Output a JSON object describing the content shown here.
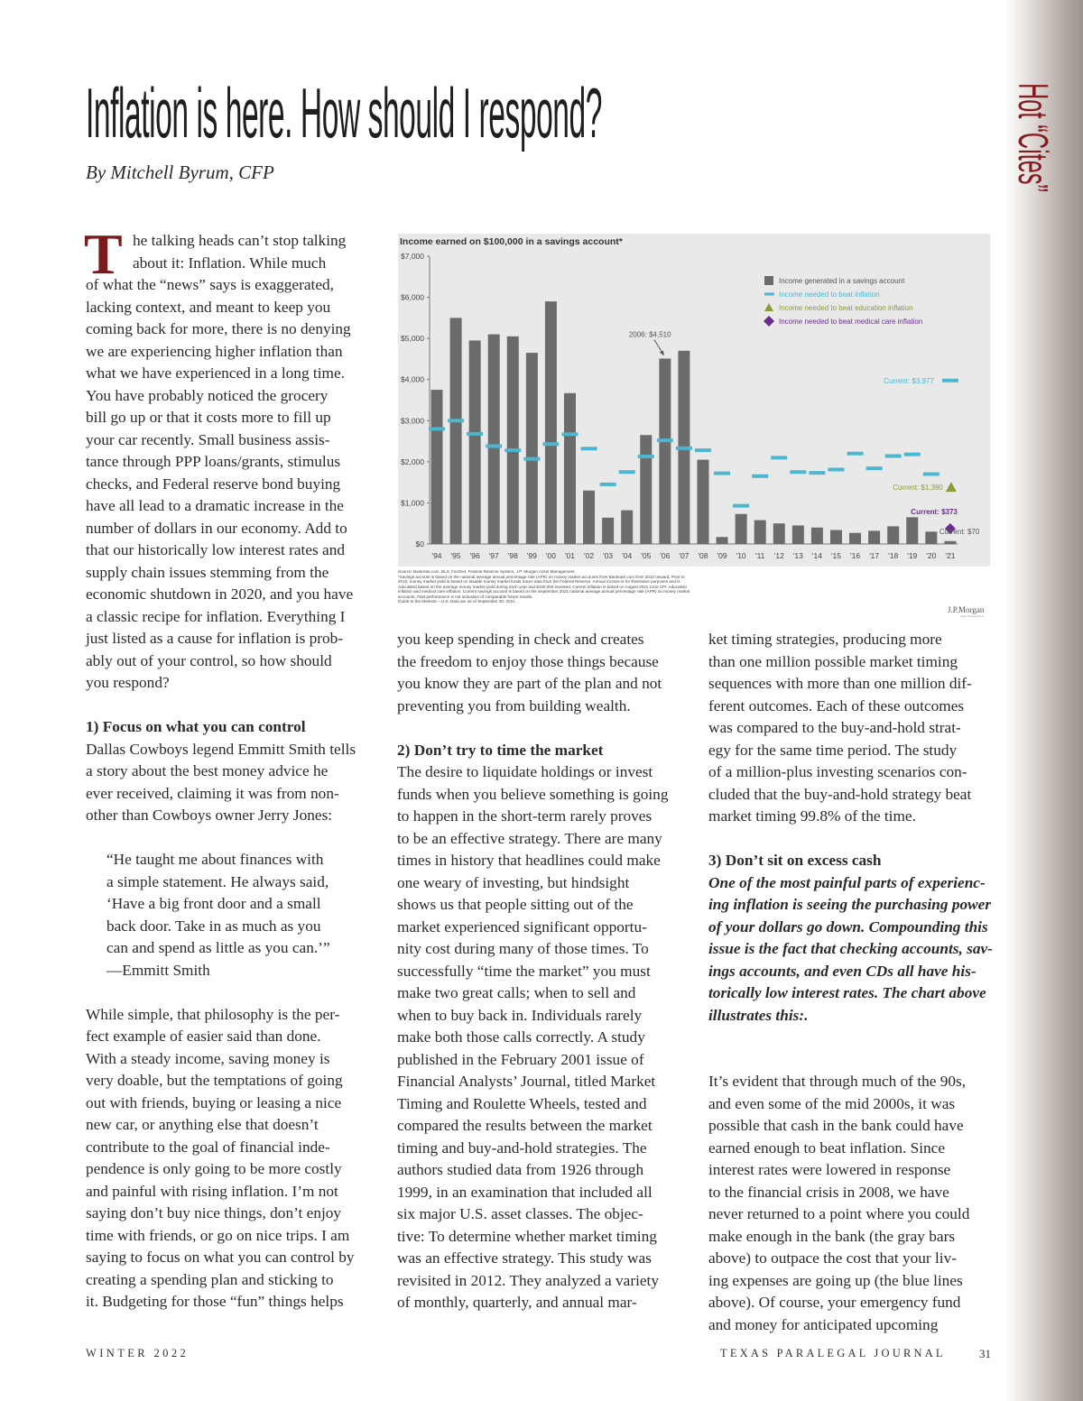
{
  "side_banner": "Hot “Cites”",
  "title": "Inflation is here. How should I respond?",
  "byline": "By Mitchell Byrum, CFP",
  "drop_cap": "T",
  "columns": [
    {
      "lines": [
        {
          "s": "d",
          "t": "he talking heads can’t stop talking"
        },
        {
          "s": "d",
          "t": "about it: Inflation. While much"
        },
        {
          "s": "",
          "t": "of what the “news” says is exaggerated,"
        },
        {
          "s": "",
          "t": "lacking context, and meant to keep you"
        },
        {
          "s": "",
          "t": "coming back for more, there is no denying"
        },
        {
          "s": "",
          "t": "we are experiencing higher inflation than"
        },
        {
          "s": "",
          "t": "what we have experienced in a long time."
        },
        {
          "s": "",
          "t": "You have probably noticed the grocery"
        },
        {
          "s": "",
          "t": "bill go up or that it costs more to fill up"
        },
        {
          "s": "",
          "t": "your car recently. Small business assis-"
        },
        {
          "s": "",
          "t": "tance through PPP loans/grants, stimulus"
        },
        {
          "s": "",
          "t": "checks, and Federal reserve bond buying"
        },
        {
          "s": "",
          "t": "have all lead to a dramatic increase in the"
        },
        {
          "s": "",
          "t": "number of dollars in our economy. Add to"
        },
        {
          "s": "",
          "t": "that our historically low interest rates and"
        },
        {
          "s": "",
          "t": "supply chain issues stemming from the"
        },
        {
          "s": "",
          "t": "economic shutdown in 2020, and you have"
        },
        {
          "s": "",
          "t": "a classic recipe for inflation. Everything I"
        },
        {
          "s": "",
          "t": "just listed as a cause for inflation is prob-"
        },
        {
          "s": "",
          "t": "ably out of your control, so how should"
        },
        {
          "s": "",
          "t": "you respond?"
        },
        {
          "s": "",
          "t": ""
        },
        {
          "s": "h",
          "t": "1) Focus on what you can control"
        },
        {
          "s": "",
          "t": "Dallas Cowboys legend Emmitt Smith tells"
        },
        {
          "s": "",
          "t": "a story about the best money advice he"
        },
        {
          "s": "",
          "t": "ever received, claiming it was from non-"
        },
        {
          "s": "",
          "t": "other than Cowboys owner Jerry Jones:"
        },
        {
          "s": "",
          "t": ""
        },
        {
          "s": "q",
          "t": "“He taught me about finances with"
        },
        {
          "s": "q",
          "t": "a simple statement. He always said,"
        },
        {
          "s": "q",
          "t": "‘Have a big front door and a small"
        },
        {
          "s": "q",
          "t": "back door. Take in as much as you"
        },
        {
          "s": "q",
          "t": "can and spend as little as you can.’”"
        },
        {
          "s": "q",
          "t": "—Emmitt Smith"
        },
        {
          "s": "",
          "t": ""
        },
        {
          "s": "",
          "t": "While simple, that philosophy is the per-"
        },
        {
          "s": "",
          "t": "fect example of easier said than done."
        },
        {
          "s": "",
          "t": "With a steady income, saving money is"
        },
        {
          "s": "",
          "t": "very doable, but the temptations of going"
        },
        {
          "s": "",
          "t": "out with friends, buying or leasing a nice"
        },
        {
          "s": "",
          "t": "new car, or anything else that doesn’t"
        },
        {
          "s": "",
          "t": "contribute to the goal of financial inde-"
        },
        {
          "s": "",
          "t": "pendence is only going to be more costly"
        },
        {
          "s": "",
          "t": "and painful with rising inflation. I’m not"
        },
        {
          "s": "",
          "t": "saying don’t buy nice things, don’t enjoy"
        },
        {
          "s": "",
          "t": "time with friends, or go on nice trips. I am"
        },
        {
          "s": "",
          "t": "saying to focus on what you can control by"
        },
        {
          "s": "",
          "t": "creating a spending plan and sticking to"
        },
        {
          "s": "",
          "t": "it. Budgeting for those “fun” things helps"
        }
      ]
    },
    {
      "lines": [
        {
          "s": "",
          "t": "you keep spending in check and creates"
        },
        {
          "s": "",
          "t": "the freedom to enjoy those things because"
        },
        {
          "s": "",
          "t": "you know they are part of the plan and not"
        },
        {
          "s": "",
          "t": "preventing you from building wealth."
        },
        {
          "s": "",
          "t": ""
        },
        {
          "s": "h",
          "t": "2) Don’t try to time the market"
        },
        {
          "s": "",
          "t": "The desire to liquidate holdings or invest"
        },
        {
          "s": "",
          "t": "funds when you believe something is going"
        },
        {
          "s": "",
          "t": "to happen in the short-term rarely proves"
        },
        {
          "s": "",
          "t": "to be an effective strategy. There are many"
        },
        {
          "s": "",
          "t": "times in history that headlines could make"
        },
        {
          "s": "",
          "t": "one weary of investing, but hindsight"
        },
        {
          "s": "",
          "t": "shows us that people sitting out of the"
        },
        {
          "s": "",
          "t": "market experienced significant opportu-"
        },
        {
          "s": "",
          "t": "nity cost during many of those times. To"
        },
        {
          "s": "",
          "t": "successfully “time the market” you must"
        },
        {
          "s": "",
          "t": "make two great calls; when to sell and"
        },
        {
          "s": "",
          "t": "when to buy back in. Individuals rarely"
        },
        {
          "s": "",
          "t": "make both those calls correctly. A study"
        },
        {
          "s": "",
          "t": "published in the February 2001 issue of"
        },
        {
          "s": "",
          "t": "Financial Analysts’ Journal, titled Market"
        },
        {
          "s": "",
          "t": "Timing and Roulette Wheels, tested and"
        },
        {
          "s": "",
          "t": "compared the results between the market"
        },
        {
          "s": "",
          "t": "timing and buy-and-hold strategies. The"
        },
        {
          "s": "",
          "t": "authors studied data from 1926 through"
        },
        {
          "s": "",
          "t": "1999, in an examination that included all"
        },
        {
          "s": "",
          "t": "six major U.S. asset classes. The objec-"
        },
        {
          "s": "",
          "t": "tive: To determine whether market timing"
        },
        {
          "s": "",
          "t": "was an effective strategy. This study was"
        },
        {
          "s": "",
          "t": "revisited in 2012. They analyzed a variety"
        },
        {
          "s": "",
          "t": "of monthly, quarterly, and annual mar-"
        }
      ]
    },
    {
      "lines": [
        {
          "s": "",
          "t": "ket timing strategies, producing more"
        },
        {
          "s": "",
          "t": "than one million possible market timing"
        },
        {
          "s": "",
          "t": "sequences with more than one million dif-"
        },
        {
          "s": "",
          "t": "ferent outcomes. Each of these outcomes"
        },
        {
          "s": "",
          "t": "was compared to the buy-and-hold strat-"
        },
        {
          "s": "",
          "t": "egy for the same time period. The study"
        },
        {
          "s": "",
          "t": "of a million-plus investing scenarios con-"
        },
        {
          "s": "",
          "t": "cluded that the buy-and-hold strategy beat"
        },
        {
          "s": "",
          "t": "market timing 99.8% of the time."
        },
        {
          "s": "",
          "t": ""
        },
        {
          "s": "h",
          "t": "3) Don’t sit on excess cash"
        },
        {
          "s": "i",
          "t": "One of the most painful parts of experienc-"
        },
        {
          "s": "i",
          "t": "ing inflation is seeing the purchasing power"
        },
        {
          "s": "i",
          "t": "of your dollars go down. Compounding this"
        },
        {
          "s": "i",
          "t": "issue is the fact that checking accounts, sav-"
        },
        {
          "s": "i",
          "t": "ings accounts, and even CDs all have his-"
        },
        {
          "s": "i",
          "t": "torically low interest rates. The chart above"
        },
        {
          "s": "i",
          "t": "illustrates this:."
        },
        {
          "s": "",
          "t": ""
        },
        {
          "s": "",
          "t": ""
        },
        {
          "s": "",
          "t": "It’s evident that through much of the 90s,"
        },
        {
          "s": "",
          "t": "and even some of the mid 2000s, it was"
        },
        {
          "s": "",
          "t": "possible that cash in the bank could have"
        },
        {
          "s": "",
          "t": "earned enough to beat inflation. Since"
        },
        {
          "s": "",
          "t": "interest rates were lowered in response"
        },
        {
          "s": "",
          "t": "to the financial crisis in 2008, we have"
        },
        {
          "s": "",
          "t": "never returned to a point where you could"
        },
        {
          "s": "",
          "t": "make enough in the bank (the gray bars"
        },
        {
          "s": "",
          "t": "above) to outpace the cost that your liv-"
        },
        {
          "s": "",
          "t": "ing expenses are going up (the blue lines"
        },
        {
          "s": "",
          "t": "above). Of course, your emergency fund"
        },
        {
          "s": "",
          "t": "and money for anticipated upcoming"
        }
      ]
    }
  ],
  "chart_data": {
    "type": "bar",
    "title": "Income earned on $100,000 in a savings account*",
    "ylim": [
      0,
      7000
    ],
    "yticks": [
      "$0",
      "$1,000",
      "$2,000",
      "$3,000",
      "$4,000",
      "$5,000",
      "$6,000",
      "$7,000"
    ],
    "categories": [
      "'94",
      "'95",
      "'96",
      "'97",
      "'98",
      "'99",
      "'00",
      "'01",
      "'02",
      "'03",
      "'04",
      "'05",
      "'06",
      "'07",
      "'08",
      "'09",
      "'10",
      "'11",
      "'12",
      "'13",
      "'14",
      "'15",
      "'16",
      "'17",
      "'18",
      "'19",
      "'20",
      "'21"
    ],
    "series": [
      {
        "name": "Income generated in a savings account",
        "kind": "bar",
        "color": "#6b6b6b",
        "values": [
          3750,
          5500,
          4950,
          5100,
          5050,
          4650,
          5900,
          3670,
          1300,
          640,
          820,
          2650,
          4510,
          4700,
          2050,
          170,
          730,
          580,
          500,
          450,
          400,
          340,
          270,
          320,
          430,
          650,
          300,
          70
        ]
      },
      {
        "name": "Income needed to beat inflation",
        "kind": "dash",
        "color": "#4db6cf",
        "values": [
          2800,
          3000,
          2680,
          2380,
          2280,
          2070,
          2430,
          2670,
          2320,
          1450,
          1750,
          2130,
          2520,
          2330,
          2280,
          1720,
          930,
          1650,
          2100,
          1750,
          1730,
          1810,
          2200,
          1840,
          2140,
          2180,
          1700,
          3977
        ]
      },
      {
        "name": "Income needed to beat education inflation",
        "kind": "triangle",
        "color": "#8c9a35",
        "points": [
          {
            "x": "'21",
            "y": 1380
          }
        ]
      },
      {
        "name": "Income needed to beat medical care inflation",
        "kind": "diamond",
        "color": "#6b2d8f",
        "points": [
          {
            "x": "'21",
            "y": 373
          }
        ]
      }
    ],
    "legend": "top-right",
    "grid": false,
    "annotations": [
      {
        "text": "2006: $4,510",
        "x": "'06",
        "y": 4510,
        "color": "#555555"
      },
      {
        "text": "Current: $3,977",
        "x": "'21",
        "y": 3977,
        "color": "#4db6cf"
      },
      {
        "text": "Current: $1,380",
        "x": "'21",
        "y": 1380,
        "color": "#8c9a35"
      },
      {
        "text": "Current: $373",
        "x": "'21",
        "y": 373,
        "color": "#6b2d8f"
      },
      {
        "text": "Current: $70",
        "x": "'21",
        "y": 70,
        "color": "#555555"
      }
    ]
  },
  "chart_source": [
    "Source: Bankrate.com, BLS, FactSet, Federal Reserve System, J.P. Morgan Asset Management.",
    "*Savings account is based on the national average annual percentage rate (APR) on money market accounts from Bankrate.com from 2010 onward. Prior to 2010, money market yield is based on taxable money market funds return data from the Federal Reserve. Annual income is for illustrative purposes and is calculated based on the average money market yield during each year and $100,000 invested. Current inflation is based on August 2021 Core CPI, education inflation and medical care inflation. Current savings account is based on the September 2021 national average annual percentage rate (APR) on money market accounts. Past performance is not indicative of comparable future results.",
    "Guide to the Markets – U.S. Data are as of September 30, 2021."
  ],
  "chart_logo": "J.P.Morgan",
  "chart_logo_sub": "Asset Management",
  "footer": {
    "issue": "WINTER 2022",
    "journal": "TEXAS PARALEGAL JOURNAL",
    "page": "31"
  }
}
